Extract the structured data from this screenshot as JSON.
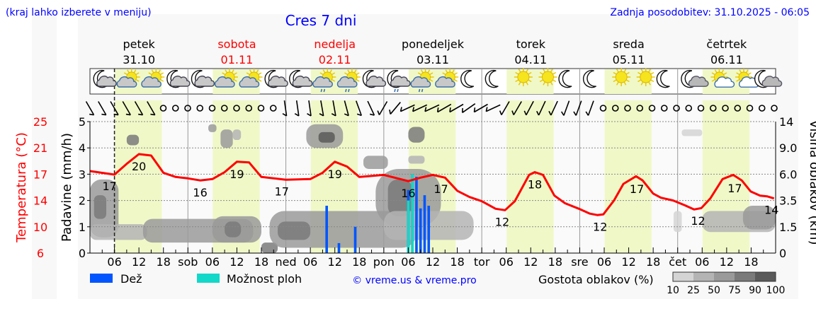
{
  "header": {
    "hint": "(kraj lahko izberete v meniju)",
    "title": "Cres 7 dni",
    "updated": "Zadnja posodobitev: 31.10.2025 - 06:05"
  },
  "colors": {
    "link": "#0000ff",
    "temp": "#ff0000",
    "rain": "#0055ff",
    "showers": "#11d8c8",
    "daylight": "#f0f8c8",
    "weekend": "#ff0000"
  },
  "chart_data": {
    "type": "line",
    "title": "Cres 7 dni",
    "x_unit": "hours since Fri 31.10 00:00",
    "xlim": [
      0,
      168
    ],
    "days": [
      {
        "name": "petek",
        "date": "31.10",
        "weekend": false
      },
      {
        "name": "sobota",
        "date": "01.11",
        "weekend": true
      },
      {
        "name": "nedelja",
        "date": "02.11",
        "weekend": true
      },
      {
        "name": "ponedeljek",
        "date": "03.11",
        "weekend": false
      },
      {
        "name": "torek",
        "date": "04.11",
        "weekend": false
      },
      {
        "name": "sreda",
        "date": "05.11",
        "weekend": false
      },
      {
        "name": "četrtek",
        "date": "06.11",
        "weekend": false
      }
    ],
    "x_tick_labels": [
      "",
      "06",
      "12",
      "18",
      "sob",
      "06",
      "12",
      "18",
      "ned",
      "06",
      "12",
      "18",
      "pon",
      "06",
      "12",
      "18",
      "tor",
      "06",
      "12",
      "18",
      "sre",
      "06",
      "12",
      "18",
      "čet",
      "06",
      "12",
      "18"
    ],
    "current_time_hour": 6,
    "daylight_hours": [
      6.1,
      17.6
    ],
    "axes": {
      "precip": {
        "label": "Padavine (mm/h)",
        "ylim": [
          0,
          5
        ],
        "ticks": [
          "0",
          "1",
          "2",
          "3",
          "4",
          "5"
        ]
      },
      "temp": {
        "label": "Temperatura (°C)",
        "ylim": [
          6,
          25
        ],
        "ticks": [
          "6",
          "10",
          "14",
          "17",
          "21",
          "25"
        ]
      },
      "cloud_height": {
        "label": "Višina oblakov (km)",
        "ticks": [
          "0",
          "1.5",
          "3.5",
          "6.0",
          "9.0",
          "14"
        ]
      }
    },
    "temperature": [
      [
        0,
        17.85
      ],
      [
        6,
        17.34
      ],
      [
        9,
        18.9
      ],
      [
        12,
        20.3
      ],
      [
        15,
        20.1
      ],
      [
        18,
        17.6
      ],
      [
        21,
        17.0
      ],
      [
        24,
        16.8
      ],
      [
        27,
        16.5
      ],
      [
        30,
        16.7
      ],
      [
        33,
        17.7
      ],
      [
        36,
        19.2
      ],
      [
        39,
        19.1
      ],
      [
        42,
        17.0
      ],
      [
        48,
        16.6
      ],
      [
        54,
        16.7
      ],
      [
        57,
        17.6
      ],
      [
        60,
        19.2
      ],
      [
        63,
        18.5
      ],
      [
        66,
        17.0
      ],
      [
        72,
        17.3
      ],
      [
        78,
        16.4
      ],
      [
        81,
        16.9
      ],
      [
        84,
        17.3
      ],
      [
        87,
        16.9
      ],
      [
        90,
        15.0
      ],
      [
        93,
        14.1
      ],
      [
        96,
        13.5
      ],
      [
        99.4,
        12.4
      ],
      [
        101.7,
        12.2
      ],
      [
        104.1,
        13.5
      ],
      [
        107.6,
        17.3
      ],
      [
        109,
        17.7
      ],
      [
        111,
        17.3
      ],
      [
        113.8,
        14.3
      ],
      [
        116.4,
        13.2
      ],
      [
        119.8,
        12.4
      ],
      [
        122.5,
        11.7
      ],
      [
        124.3,
        11.5
      ],
      [
        125.8,
        11.6
      ],
      [
        128.4,
        13.6
      ],
      [
        130.7,
        16.0
      ],
      [
        133.8,
        17.1
      ],
      [
        135.4,
        16.5
      ],
      [
        138,
        14.6
      ],
      [
        139.9,
        14.0
      ],
      [
        142.9,
        13.6
      ],
      [
        145.8,
        12.9
      ],
      [
        148,
        12.3
      ],
      [
        149.8,
        12.5
      ],
      [
        152,
        13.9
      ],
      [
        155,
        16.7
      ],
      [
        157.6,
        17.3
      ],
      [
        159.7,
        16.5
      ],
      [
        161.9,
        14.9
      ],
      [
        164.2,
        14.3
      ],
      [
        165.9,
        14.2
      ],
      [
        167.6,
        13.9
      ]
    ],
    "temp_labels": [
      {
        "hour": 4.8,
        "text": "17"
      },
      {
        "hour": 12,
        "text": "20"
      },
      {
        "hour": 27,
        "text": "16"
      },
      {
        "hour": 36,
        "text": "19"
      },
      {
        "hour": 47,
        "text": "17"
      },
      {
        "hour": 60,
        "text": "19"
      },
      {
        "hour": 78,
        "text": "16"
      },
      {
        "hour": 86,
        "text": "17"
      },
      {
        "hour": 101,
        "text": "12"
      },
      {
        "hour": 109,
        "text": "18"
      },
      {
        "hour": 125,
        "text": "12"
      },
      {
        "hour": 134,
        "text": "17"
      },
      {
        "hour": 149,
        "text": "12"
      },
      {
        "hour": 158,
        "text": "17"
      },
      {
        "hour": 167,
        "text": "14"
      }
    ],
    "precipitation": [
      {
        "hour": 58,
        "rain": 1.8,
        "showers": 0
      },
      {
        "hour": 61,
        "rain": 0.38,
        "showers": 0
      },
      {
        "hour": 65,
        "rain": 1.0,
        "showers": 0
      },
      {
        "hour": 78,
        "rain": 2.4,
        "showers": 2.0
      },
      {
        "hour": 79,
        "rain": 3.0,
        "showers": 3.0
      },
      {
        "hour": 80,
        "rain": 2.9,
        "showers": 0
      },
      {
        "hour": 81,
        "rain": 1.7,
        "showers": 0
      },
      {
        "hour": 82,
        "rain": 2.2,
        "showers": 0
      },
      {
        "hour": 83,
        "rain": 1.8,
        "showers": 0
      }
    ],
    "cloud_patches": [
      {
        "h0": 0,
        "h1": 7,
        "v0": 0.6,
        "v1": 2.8,
        "density": 50
      },
      {
        "h0": 0,
        "h1": 14,
        "v0": 0.5,
        "v1": 1.1,
        "density": 25
      },
      {
        "h0": 1,
        "h1": 4,
        "v0": 1.3,
        "v1": 2.2,
        "density": 75
      },
      {
        "h0": 9,
        "h1": 12,
        "v0": 4.1,
        "v1": 4.5,
        "density": 75
      },
      {
        "h0": 13,
        "h1": 40,
        "v0": 0.4,
        "v1": 1.3,
        "density": 50
      },
      {
        "h0": 30,
        "h1": 42,
        "v0": 0.4,
        "v1": 1.4,
        "density": 50
      },
      {
        "h0": 33,
        "h1": 37,
        "v0": 0.6,
        "v1": 1.2,
        "density": 75
      },
      {
        "h0": 29,
        "h1": 31,
        "v0": 4.6,
        "v1": 4.9,
        "density": 50
      },
      {
        "h0": 32,
        "h1": 35,
        "v0": 4.0,
        "v1": 4.7,
        "density": 50
      },
      {
        "h0": 35,
        "h1": 37,
        "v0": 4.3,
        "v1": 4.7,
        "density": 25
      },
      {
        "h0": 42,
        "h1": 46,
        "v0": 0.0,
        "v1": 0.4,
        "density": 75
      },
      {
        "h0": 44,
        "h1": 80,
        "v0": 0.2,
        "v1": 1.6,
        "density": 50
      },
      {
        "h0": 46,
        "h1": 54,
        "v0": 0.5,
        "v1": 1.2,
        "density": 75
      },
      {
        "h0": 53,
        "h1": 62,
        "v0": 4.0,
        "v1": 4.9,
        "density": 50
      },
      {
        "h0": 56,
        "h1": 60,
        "v0": 4.2,
        "v1": 4.6,
        "density": 90
      },
      {
        "h0": 67,
        "h1": 73,
        "v0": 3.2,
        "v1": 3.7,
        "density": 50
      },
      {
        "h0": 70,
        "h1": 86,
        "v0": 1.0,
        "v1": 3.2,
        "density": 50
      },
      {
        "h0": 73,
        "h1": 79,
        "v0": 1.4,
        "v1": 2.8,
        "density": 75
      },
      {
        "h0": 72,
        "h1": 94,
        "v0": 0.5,
        "v1": 1.6,
        "density": 25
      },
      {
        "h0": 78,
        "h1": 82,
        "v0": 4.2,
        "v1": 4.8,
        "density": 75
      },
      {
        "h0": 78,
        "h1": 82,
        "v0": 3.4,
        "v1": 3.7,
        "density": 25
      },
      {
        "h0": 145,
        "h1": 150,
        "v0": 4.45,
        "v1": 4.7,
        "density": 10
      },
      {
        "h0": 143,
        "h1": 145,
        "v0": 0.8,
        "v1": 1.6,
        "density": 10
      },
      {
        "h0": 150,
        "h1": 168,
        "v0": 0.8,
        "v1": 1.6,
        "density": 25
      },
      {
        "h0": 160,
        "h1": 168,
        "v0": 0.9,
        "v1": 1.8,
        "density": 50
      }
    ],
    "weather_icons": [
      "moon-cloud",
      "sun-cloud",
      "sun-cloud",
      "moon-cloud",
      "moon-cloud",
      "sun-cloud",
      "sun-cloud",
      "moon-cloud",
      "moon-cloud",
      "sun-cloud-rain",
      "sun-cloud-rain",
      "moon-cloud",
      "moon-cloud-rain",
      "sun-cloud-rain",
      "sun-cloud",
      "moon",
      "moon",
      "sun",
      "sun",
      "moon",
      "moon",
      "sun",
      "sun",
      "moon",
      "moon-smallcloud",
      "sun-smallcloud",
      "sun-smallcloud",
      "moon-smallcloud"
    ],
    "wind_barbs_deg": [
      -30,
      -30,
      -30,
      -30,
      -30,
      -30,
      null,
      null,
      null,
      null,
      null,
      null,
      null,
      null,
      null,
      null,
      -8,
      -8,
      -8,
      -10,
      -10,
      -15,
      -20,
      -25,
      30,
      40,
      65,
      65,
      65,
      60,
      60,
      55,
      60,
      65,
      30,
      30,
      28,
      25,
      25,
      20,
      20,
      20,
      null,
      null,
      null,
      null,
      null,
      null,
      null,
      null,
      null,
      null,
      null,
      null,
      null,
      null,
      null
    ],
    "legend": {
      "rain": "Dež",
      "showers": "Možnost ploh",
      "credit": "© vreme.us & vreme.pro",
      "density_title": "Gostota oblakov (%)",
      "density_levels": [
        "10",
        "25",
        "50",
        "75",
        "90",
        "100"
      ]
    }
  }
}
